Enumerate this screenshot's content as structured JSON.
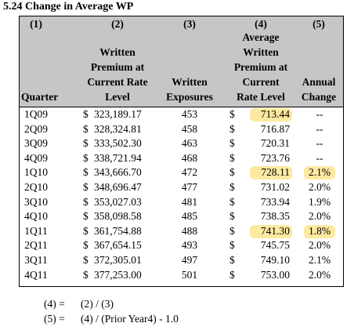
{
  "title": "5.24  Change in Average WP",
  "table": {
    "column_numbers": [
      "(1)",
      "(2)",
      "(3)",
      "(4)",
      "(5)"
    ],
    "headers": [
      [
        "Quarter"
      ],
      [
        "Written",
        "Premium at",
        "Current Rate",
        "Level"
      ],
      [
        "Written",
        "Exposures"
      ],
      [
        "Average",
        "Written",
        "Premium at",
        "Current",
        "Rate Level"
      ],
      [
        "Annual",
        "Change"
      ]
    ],
    "rows": [
      [
        "1Q09",
        "$",
        "323,189.17",
        "453",
        "$",
        "713.44",
        "--"
      ],
      [
        "2Q09",
        "$",
        "328,324.81",
        "458",
        "$",
        "716.87",
        "--"
      ],
      [
        "3Q09",
        "$",
        "333,502.30",
        "463",
        "$",
        "720.31",
        "--"
      ],
      [
        "4Q09",
        "$",
        "338,721.94",
        "468",
        "$",
        "723.76",
        "--"
      ],
      [
        "1Q10",
        "$",
        "343,666.70",
        "472",
        "$",
        "728.11",
        "2.1%"
      ],
      [
        "2Q10",
        "$",
        "348,696.47",
        "477",
        "$",
        "731.02",
        "2.0%"
      ],
      [
        "3Q10",
        "$",
        "353,027.03",
        "481",
        "$",
        "733.94",
        "1.9%"
      ],
      [
        "4Q10",
        "$",
        "358,098.58",
        "485",
        "$",
        "738.35",
        "2.0%"
      ],
      [
        "1Q11",
        "$",
        "361,754.88",
        "488",
        "$",
        "741.30",
        "1.8%"
      ],
      [
        "2Q11",
        "$",
        "367,654.15",
        "493",
        "$",
        "745.75",
        "2.0%"
      ],
      [
        "3Q11",
        "$",
        "372,305.01",
        "497",
        "$",
        "749.10",
        "2.1%"
      ],
      [
        "4Q11",
        "$",
        "377,253.00",
        "501",
        "$",
        "753.00",
        "2.0%"
      ]
    ],
    "highlighted": [
      {
        "row": 0,
        "col": 5
      },
      {
        "row": 4,
        "col": 5
      },
      {
        "row": 4,
        "col": 6
      },
      {
        "row": 8,
        "col": 5
      },
      {
        "row": 8,
        "col": 6
      }
    ]
  },
  "notes": [
    [
      "(4) =",
      "(2) / (3)"
    ],
    [
      "(5) =",
      "(4) / (Prior Year4) - 1.0"
    ]
  ]
}
